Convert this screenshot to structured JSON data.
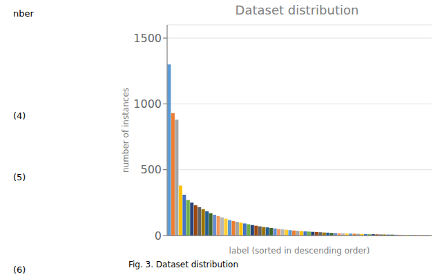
{
  "chart_data": {
    "type": "bar",
    "title": "Dataset distribution",
    "xlabel": "label (sorted in descending order)",
    "ylabel": "number of instances",
    "annotations": [
      "nber",
      "(4)",
      "(5)",
      "(6)",
      "Fig. 3. Dataset distribution"
    ],
    "categories": [
      null,
      null,
      null,
      null,
      null,
      null,
      null,
      null,
      null,
      null,
      null,
      null,
      null,
      null,
      null,
      null,
      null,
      null,
      null,
      null,
      null,
      null,
      null,
      null,
      null,
      null,
      null,
      null,
      null,
      null,
      null,
      null,
      null,
      null,
      null,
      null,
      null,
      null,
      null,
      null,
      null,
      null,
      null,
      null,
      null,
      null,
      null,
      null,
      null,
      null,
      null,
      null,
      null,
      null,
      null,
      null,
      null,
      null,
      null,
      null,
      null,
      null,
      null,
      null,
      null,
      null,
      null,
      null,
      null,
      null
    ],
    "values": [
      1300,
      930,
      880,
      380,
      310,
      270,
      250,
      230,
      215,
      200,
      185,
      170,
      158,
      148,
      138,
      128,
      118,
      110,
      104,
      98,
      92,
      86,
      80,
      75,
      70,
      65,
      62,
      58,
      54,
      50,
      47,
      44,
      41,
      38,
      36,
      34,
      32,
      30,
      28,
      27,
      25,
      23,
      22,
      20,
      19,
      18,
      17,
      16,
      15,
      14,
      13,
      12,
      11,
      10,
      10,
      9,
      8,
      8,
      7,
      7,
      6,
      6,
      5,
      5,
      4,
      4,
      3,
      3,
      2,
      2
    ],
    "colors": [
      "#5b9bd5",
      "#ed7d31",
      "#a5a5a5",
      "#ffc000",
      "#4472c4",
      "#70ad47",
      "#264478",
      "#9e480e",
      "#636363",
      "#997300",
      "#255e91",
      "#43682b",
      "#698ed0",
      "#f1975a",
      "#b7b7b7",
      "#ffcd33",
      "#5b9bd5",
      "#ed7d31",
      "#a5a5a5",
      "#ffc000",
      "#4472c4",
      "#70ad47",
      "#264478",
      "#9e480e",
      "#636363",
      "#997300",
      "#255e91",
      "#43682b",
      "#698ed0",
      "#f1975a",
      "#b7b7b7",
      "#ffcd33",
      "#5b9bd5",
      "#ed7d31",
      "#a5a5a5",
      "#ffc000",
      "#4472c4",
      "#70ad47",
      "#264478",
      "#9e480e",
      "#636363",
      "#997300",
      "#255e91",
      "#43682b",
      "#698ed0",
      "#f1975a",
      "#b7b7b7",
      "#ffcd33",
      "#5b9bd5",
      "#ed7d31",
      "#a5a5a5",
      "#ffc000",
      "#4472c4",
      "#70ad47",
      "#264478",
      "#9e480e",
      "#636363",
      "#997300",
      "#255e91",
      "#43682b",
      "#698ed0",
      "#f1975a",
      "#b7b7b7",
      "#ffcd33",
      "#5b9bd5",
      "#ed7d31",
      "#a5a5a5",
      "#ffc000",
      "#4472c4",
      "#70ad47"
    ],
    "ylim": [
      0,
      1600
    ],
    "yticks": [
      0,
      500,
      1000,
      1500
    ],
    "grid": true,
    "tick_labels": "y"
  }
}
